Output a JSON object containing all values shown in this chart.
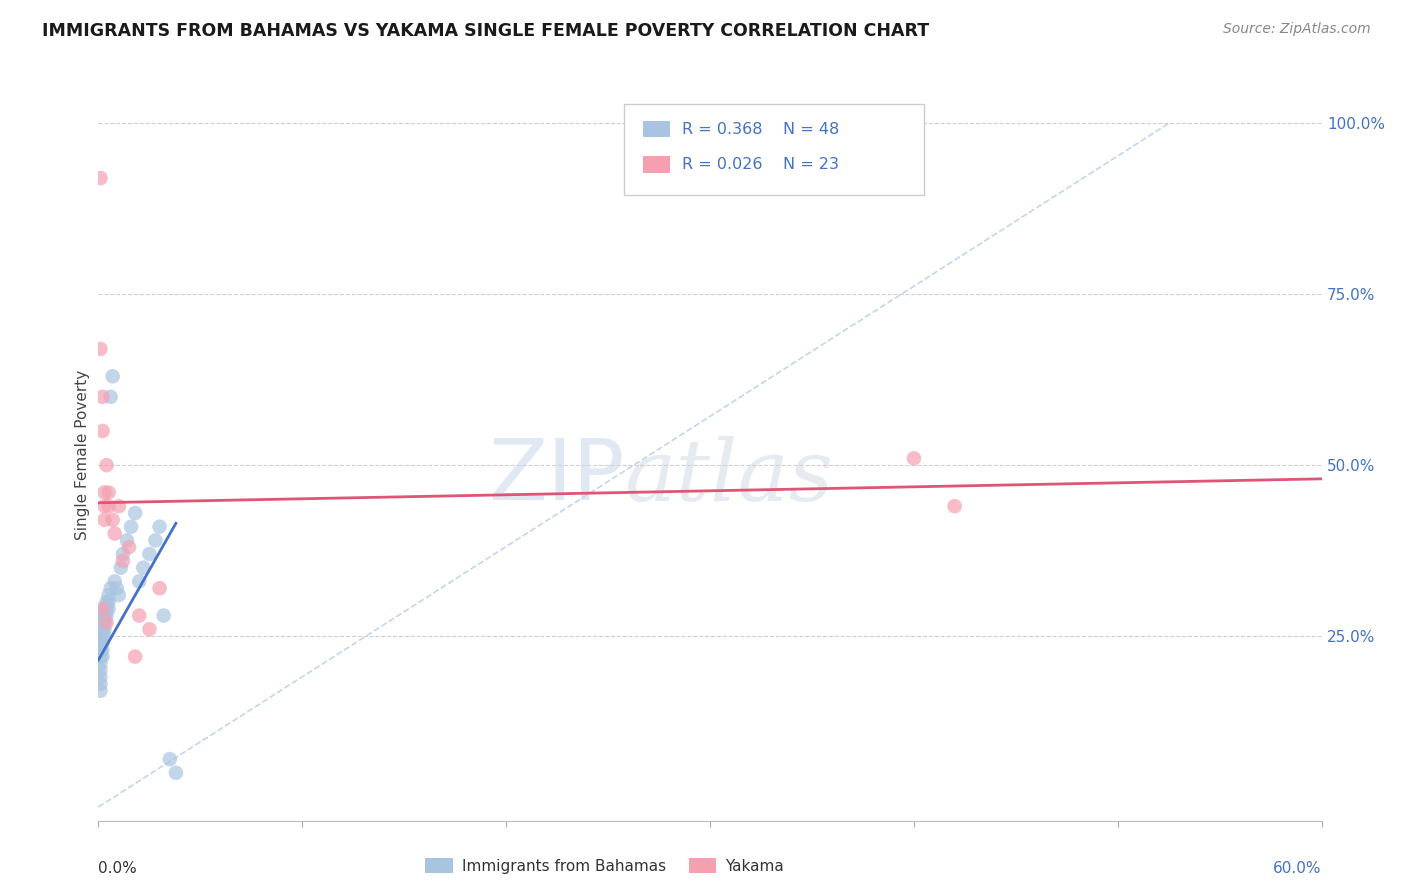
{
  "title": "IMMIGRANTS FROM BAHAMAS VS YAKAMA SINGLE FEMALE POVERTY CORRELATION CHART",
  "source": "Source: ZipAtlas.com",
  "ylabel": "Single Female Poverty",
  "ytick_labels_right": [
    "25.0%",
    "50.0%",
    "75.0%",
    "100.0%"
  ],
  "ytick_values": [
    0.25,
    0.5,
    0.75,
    1.0
  ],
  "xlim": [
    0.0,
    0.6
  ],
  "ylim": [
    -0.02,
    1.05
  ],
  "legend_R_blue": "R = 0.368",
  "legend_N_blue": "N = 48",
  "legend_R_pink": "R = 0.026",
  "legend_N_pink": "N = 23",
  "blue_color": "#a8c4e0",
  "pink_color": "#f4a0b0",
  "blue_line_color": "#4472c4",
  "pink_line_color": "#e05575",
  "diagonal_color": "#b8cfe8",
  "watermark_zip": "ZIP",
  "watermark_atlas": "atlas",
  "blue_scatter_x": [
    0.001,
    0.001,
    0.001,
    0.001,
    0.001,
    0.001,
    0.001,
    0.001,
    0.001,
    0.001,
    0.001,
    0.002,
    0.002,
    0.002,
    0.002,
    0.002,
    0.002,
    0.002,
    0.003,
    0.003,
    0.003,
    0.003,
    0.003,
    0.004,
    0.004,
    0.004,
    0.005,
    0.005,
    0.005,
    0.006,
    0.006,
    0.007,
    0.008,
    0.009,
    0.01,
    0.011,
    0.012,
    0.014,
    0.016,
    0.018,
    0.02,
    0.022,
    0.025,
    0.028,
    0.03,
    0.032,
    0.035,
    0.038
  ],
  "blue_scatter_y": [
    0.27,
    0.26,
    0.25,
    0.24,
    0.23,
    0.22,
    0.21,
    0.2,
    0.19,
    0.18,
    0.17,
    0.28,
    0.27,
    0.26,
    0.25,
    0.24,
    0.23,
    0.22,
    0.29,
    0.28,
    0.27,
    0.26,
    0.25,
    0.3,
    0.29,
    0.28,
    0.31,
    0.3,
    0.29,
    0.32,
    0.6,
    0.63,
    0.33,
    0.32,
    0.31,
    0.35,
    0.37,
    0.39,
    0.41,
    0.43,
    0.33,
    0.35,
    0.37,
    0.39,
    0.41,
    0.28,
    0.07,
    0.05
  ],
  "pink_scatter_x": [
    0.001,
    0.001,
    0.002,
    0.002,
    0.003,
    0.003,
    0.003,
    0.004,
    0.005,
    0.005,
    0.007,
    0.008,
    0.01,
    0.012,
    0.015,
    0.018,
    0.02,
    0.025,
    0.03,
    0.4,
    0.42,
    0.002,
    0.004
  ],
  "pink_scatter_y": [
    0.92,
    0.67,
    0.55,
    0.6,
    0.44,
    0.46,
    0.42,
    0.5,
    0.46,
    0.44,
    0.42,
    0.4,
    0.44,
    0.36,
    0.38,
    0.22,
    0.28,
    0.26,
    0.32,
    0.51,
    0.44,
    0.29,
    0.27
  ],
  "blue_line_x": [
    0.0,
    0.038
  ],
  "blue_line_y": [
    0.215,
    0.415
  ],
  "pink_line_x": [
    0.0,
    0.6
  ],
  "pink_line_y": [
    0.445,
    0.48
  ],
  "diag_line_x": [
    0.0,
    0.525
  ],
  "diag_line_y": [
    0.0,
    1.0
  ],
  "xtick_positions": [
    0.0,
    0.1,
    0.2,
    0.3,
    0.4,
    0.5,
    0.6
  ]
}
